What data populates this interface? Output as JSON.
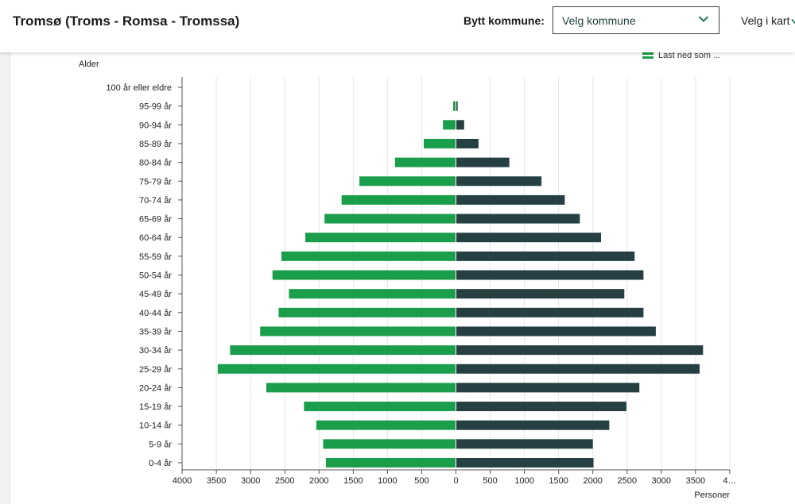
{
  "header": {
    "title": "Tromsø (Troms - Romsa - Tromssa)",
    "switch_label": "Bytt kommune:",
    "select_value": "Velg kommune",
    "map_link": "Velg i kart"
  },
  "download_label": "Last ned som ...",
  "colors": {
    "female": "#1b9e4b",
    "male": "#253f43",
    "grid": "#e6e6e6"
  },
  "chart_data": {
    "type": "bar",
    "orientation": "horizontal-population-pyramid",
    "ylabel": "Alder",
    "xlabel": "Personer",
    "categories": [
      "100 år eller eldre",
      "95-99 år",
      "90-94 år",
      "85-89 år",
      "80-84 år",
      "75-79 år",
      "70-74 år",
      "65-69 år",
      "60-64 år",
      "55-59 år",
      "50-54 år",
      "45-49 år",
      "40-44 år",
      "35-39 år",
      "30-34 år",
      "25-29 år",
      "20-24 år",
      "15-19 år",
      "10-14 år",
      "5-9 år",
      "0-4 år"
    ],
    "series": [
      {
        "side": "left",
        "color": "#1b9e4b",
        "values": [
          3,
          40,
          190,
          470,
          890,
          1410,
          1670,
          1920,
          2200,
          2550,
          2680,
          2440,
          2590,
          2860,
          3300,
          3480,
          2770,
          2220,
          2040,
          1940,
          1900
        ]
      },
      {
        "side": "right",
        "color": "#253f43",
        "values": [
          2,
          25,
          120,
          330,
          780,
          1250,
          1590,
          1810,
          2120,
          2610,
          2740,
          2460,
          2740,
          2920,
          3610,
          3560,
          2680,
          2490,
          2240,
          2000,
          2010
        ]
      }
    ],
    "xticks": [
      "4000",
      "3500",
      "3000",
      "2500",
      "2000",
      "1500",
      "1000",
      "500",
      "0",
      "500",
      "1000",
      "1500",
      "2000",
      "2500",
      "3000",
      "3500",
      "4…"
    ],
    "xlim": [
      -4000,
      4000
    ],
    "grid": true
  }
}
